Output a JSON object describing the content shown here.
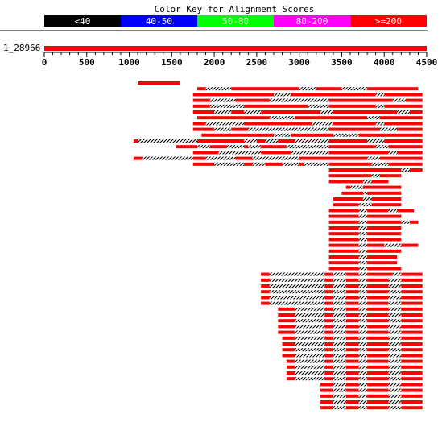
{
  "chart_data": {
    "type": "alignment-graphic",
    "title": "Color Key for Alignment Scores",
    "color_key": [
      {
        "label": "<40",
        "color": "#000000",
        "text_color": "#ffffff"
      },
      {
        "label": "40-50",
        "color": "#0000ff",
        "text_color": "#ffffff"
      },
      {
        "label": "50-80",
        "color": "#00ff00",
        "text_color": "#ffffff"
      },
      {
        "label": "80-200",
        "color": "#ff00ff",
        "text_color": "#ffffff"
      },
      {
        "label": ">=200",
        "color": "#ff0000",
        "text_color": "#ffffff"
      }
    ],
    "query": {
      "name": "1_28966",
      "length": 4500
    },
    "axis": {
      "min": 0,
      "max": 4500,
      "major_step": 500,
      "minor_step": 100,
      "tick_labels": [
        "0",
        "500",
        "1000",
        "1500",
        "2000",
        "2500",
        "3000",
        "3500",
        "4000",
        "4500"
      ]
    },
    "hit_color": "#ff0000",
    "gap_style": "black-white hatched",
    "hits": [
      [
        [
          1100,
          1600
        ]
      ],
      [
        [
          1800,
          1900
        ],
        [
          2200,
          3000
        ],
        [
          3200,
          3500
        ],
        [
          3800,
          4400
        ]
      ],
      [
        [
          1750,
          2700
        ],
        [
          2900,
          3900
        ],
        [
          4000,
          4450
        ]
      ],
      [
        [
          1750,
          1950
        ],
        [
          2250,
          2650
        ],
        [
          3350,
          4100
        ],
        [
          4250,
          4450
        ]
      ],
      [
        [
          1750,
          1950
        ],
        [
          2350,
          3100
        ],
        [
          3350,
          3900
        ],
        [
          4000,
          4450
        ]
      ],
      [
        [
          1750,
          2000
        ],
        [
          2200,
          2350
        ],
        [
          2550,
          3250
        ],
        [
          3400,
          4150
        ],
        [
          4300,
          4450
        ]
      ],
      [
        [
          1800,
          2650
        ],
        [
          2950,
          3800
        ],
        [
          3950,
          4450
        ]
      ],
      [
        [
          1750,
          1900
        ],
        [
          2350,
          3150
        ],
        [
          3400,
          3900
        ],
        [
          4000,
          4450
        ]
      ],
      [
        [
          1750,
          2000
        ],
        [
          2200,
          2400
        ],
        [
          3350,
          3950
        ],
        [
          4150,
          4450
        ]
      ],
      [
        [
          1850,
          2700
        ],
        [
          2900,
          3400
        ],
        [
          3700,
          4450
        ]
      ],
      [
        [
          1050,
          1100
        ],
        [
          1800,
          2350
        ],
        [
          2500,
          2600
        ],
        [
          2750,
          2950
        ],
        [
          3350,
          3800
        ],
        [
          4000,
          4450
        ]
      ],
      [
        [
          1550,
          1800
        ],
        [
          1950,
          2150
        ],
        [
          2350,
          2400
        ],
        [
          2550,
          2850
        ],
        [
          3350,
          3900
        ],
        [
          4050,
          4450
        ]
      ],
      [
        [
          1750,
          2050
        ],
        [
          2550,
          2900
        ],
        [
          3350,
          4050
        ],
        [
          4150,
          4450
        ]
      ],
      [
        [
          1050,
          1150
        ],
        [
          1750,
          1900
        ],
        [
          2250,
          2450
        ],
        [
          3000,
          3800
        ],
        [
          3950,
          4450
        ]
      ],
      [
        [
          1750,
          2000
        ],
        [
          2350,
          2450
        ],
        [
          2600,
          2800
        ],
        [
          3000,
          3050
        ],
        [
          3350,
          3850
        ],
        [
          4050,
          4450
        ]
      ],
      [
        [
          3350,
          4200
        ],
        [
          4300,
          4450
        ]
      ],
      [
        [
          3350,
          3850
        ],
        [
          3950,
          4200
        ]
      ],
      [
        [
          3350,
          3750
        ],
        [
          3850,
          4050
        ]
      ],
      [
        [
          3550,
          3600
        ],
        [
          3750,
          4200
        ]
      ],
      [
        [
          3500,
          3750
        ],
        [
          3800,
          4200
        ]
      ],
      [
        [
          3400,
          3750
        ],
        [
          3850,
          4200
        ]
      ],
      [
        [
          3400,
          3700
        ],
        [
          3850,
          4200
        ]
      ],
      [
        [
          3350,
          3700
        ],
        [
          3800,
          4050
        ],
        [
          4150,
          4350
        ]
      ],
      [
        [
          3350,
          3700
        ],
        [
          3800,
          4200
        ]
      ],
      [
        [
          3350,
          3700
        ],
        [
          3800,
          4200
        ],
        [
          4300,
          4400
        ]
      ],
      [
        [
          3350,
          3700
        ],
        [
          3800,
          4200
        ]
      ],
      [
        [
          3350,
          3700
        ],
        [
          3800,
          4200
        ]
      ],
      [
        [
          3350,
          3700
        ],
        [
          3800,
          4200
        ]
      ],
      [
        [
          3350,
          3700
        ],
        [
          3800,
          4000
        ],
        [
          4200,
          4400
        ]
      ],
      [
        [
          3350,
          3700
        ],
        [
          3800,
          4200
        ]
      ],
      [
        [
          3350,
          3700
        ],
        [
          3800,
          4150
        ]
      ],
      [
        [
          3350,
          3700
        ],
        [
          3800,
          4150
        ]
      ],
      [
        [
          3350,
          3700
        ],
        [
          3800,
          4200
        ]
      ],
      [
        [
          2550,
          2650
        ],
        [
          3300,
          3400
        ],
        [
          3550,
          3700
        ],
        [
          3800,
          4100
        ],
        [
          4200,
          4450
        ]
      ],
      [
        [
          2550,
          2650
        ],
        [
          3300,
          3400
        ],
        [
          3550,
          3700
        ],
        [
          3800,
          4050
        ],
        [
          4200,
          4450
        ]
      ],
      [
        [
          2550,
          2650
        ],
        [
          3300,
          3400
        ],
        [
          3550,
          3700
        ],
        [
          3800,
          4050
        ],
        [
          4200,
          4450
        ]
      ],
      [
        [
          2550,
          2650
        ],
        [
          3300,
          3400
        ],
        [
          3550,
          3700
        ],
        [
          3800,
          4050
        ],
        [
          4200,
          4450
        ]
      ],
      [
        [
          2550,
          2650
        ],
        [
          3300,
          3400
        ],
        [
          3550,
          3700
        ],
        [
          3800,
          4050
        ],
        [
          4200,
          4450
        ]
      ],
      [
        [
          2550,
          2650
        ],
        [
          3300,
          3400
        ],
        [
          3550,
          3700
        ],
        [
          3800,
          4050
        ],
        [
          4200,
          4450
        ]
      ],
      [
        [
          2750,
          2950
        ],
        [
          3300,
          3400
        ],
        [
          3550,
          3700
        ],
        [
          3800,
          4050
        ],
        [
          4200,
          4450
        ]
      ],
      [
        [
          2750,
          2950
        ],
        [
          3300,
          3400
        ],
        [
          3550,
          3700
        ],
        [
          3800,
          4050
        ],
        [
          4200,
          4450
        ]
      ],
      [
        [
          2750,
          2950
        ],
        [
          3300,
          3400
        ],
        [
          3550,
          3700
        ],
        [
          3800,
          4050
        ],
        [
          4200,
          4450
        ]
      ],
      [
        [
          2750,
          2950
        ],
        [
          3300,
          3400
        ],
        [
          3550,
          3700
        ],
        [
          3800,
          4050
        ],
        [
          4200,
          4450
        ]
      ],
      [
        [
          2750,
          2950
        ],
        [
          3300,
          3400
        ],
        [
          3550,
          3700
        ],
        [
          3800,
          4050
        ],
        [
          4200,
          4450
        ]
      ],
      [
        [
          2800,
          2950
        ],
        [
          3300,
          3400
        ],
        [
          3550,
          3700
        ],
        [
          3800,
          4050
        ],
        [
          4200,
          4450
        ]
      ],
      [
        [
          2800,
          2950
        ],
        [
          3300,
          3400
        ],
        [
          3550,
          3700
        ],
        [
          3800,
          4050
        ],
        [
          4200,
          4450
        ]
      ],
      [
        [
          2800,
          2950
        ],
        [
          3300,
          3400
        ],
        [
          3550,
          3700
        ],
        [
          3800,
          4050
        ],
        [
          4200,
          4450
        ]
      ],
      [
        [
          2800,
          2950
        ],
        [
          3300,
          3400
        ],
        [
          3550,
          3700
        ],
        [
          3800,
          4050
        ],
        [
          4200,
          4450
        ]
      ],
      [
        [
          2850,
          2950
        ],
        [
          3300,
          3400
        ],
        [
          3550,
          3700
        ],
        [
          3800,
          4050
        ],
        [
          4200,
          4450
        ]
      ],
      [
        [
          2850,
          2950
        ],
        [
          3300,
          3400
        ],
        [
          3550,
          3700
        ],
        [
          3800,
          4050
        ],
        [
          4200,
          4450
        ]
      ],
      [
        [
          2850,
          2950
        ],
        [
          3300,
          3400
        ],
        [
          3550,
          3700
        ],
        [
          3800,
          4050
        ],
        [
          4200,
          4450
        ]
      ],
      [
        [
          2850,
          2950
        ],
        [
          3300,
          3400
        ],
        [
          3550,
          3700
        ],
        [
          3800,
          4050
        ],
        [
          4200,
          4450
        ]
      ],
      [
        [
          3250,
          3400
        ],
        [
          3550,
          3700
        ],
        [
          3800,
          4050
        ],
        [
          4200,
          4450
        ]
      ],
      [
        [
          3250,
          3400
        ],
        [
          3550,
          3700
        ],
        [
          3800,
          4050
        ],
        [
          4200,
          4450
        ]
      ],
      [
        [
          3250,
          3400
        ],
        [
          3550,
          3700
        ],
        [
          3800,
          4050
        ],
        [
          4200,
          4450
        ]
      ],
      [
        [
          3250,
          3400
        ],
        [
          3550,
          3700
        ],
        [
          3800,
          4050
        ],
        [
          4200,
          4450
        ]
      ],
      [
        [
          3250,
          3400
        ],
        [
          3550,
          3700
        ],
        [
          3800,
          4050
        ],
        [
          4200,
          4450
        ]
      ]
    ]
  }
}
